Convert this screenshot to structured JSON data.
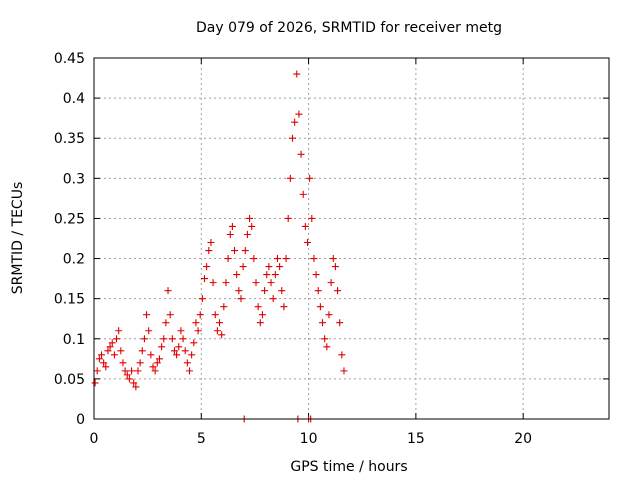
{
  "chart_data": {
    "type": "scatter",
    "title": "Day 079 of 2026, SRMTID for receiver metg",
    "xlabel": "GPS time / hours",
    "ylabel": "SRMTID / TECUs",
    "xlim": [
      0,
      24
    ],
    "ylim": [
      0,
      0.45
    ],
    "xticks": [
      0,
      5,
      10,
      15,
      20
    ],
    "xtick_labels": [
      "0",
      "5",
      "10",
      "15",
      "20"
    ],
    "yticks": [
      0,
      0.05,
      0.1,
      0.15,
      0.2,
      0.25,
      0.3,
      0.35,
      0.4,
      0.45
    ],
    "ytick_labels": [
      "0",
      "0.05",
      "0.1",
      "0.15",
      "0.2",
      "0.25",
      "0.3",
      "0.35",
      "0.4",
      "0.45"
    ],
    "grid": true,
    "marker": "plus",
    "color": "#e00000",
    "series": [
      {
        "name": "SRMTID",
        "x": [
          0.05,
          0.15,
          0.25,
          0.35,
          0.45,
          0.55,
          0.65,
          0.75,
          0.85,
          0.95,
          1.05,
          1.15,
          1.25,
          1.35,
          1.45,
          1.55,
          1.65,
          1.75,
          1.85,
          1.95,
          2.05,
          2.15,
          2.25,
          2.35,
          2.45,
          2.55,
          2.65,
          2.75,
          2.85,
          2.95,
          3.05,
          3.15,
          3.25,
          3.35,
          3.45,
          3.55,
          3.65,
          3.75,
          3.85,
          3.95,
          4.05,
          4.15,
          4.25,
          4.35,
          4.45,
          4.55,
          4.65,
          4.75,
          4.85,
          4.95,
          5.05,
          5.15,
          5.25,
          5.35,
          5.45,
          5.55,
          5.65,
          5.75,
          5.85,
          5.95,
          6.05,
          6.15,
          6.25,
          6.35,
          6.45,
          6.55,
          6.65,
          6.75,
          6.85,
          6.95,
          7.05,
          7.15,
          7.25,
          7.35,
          7.45,
          7.55,
          7.65,
          7.75,
          7.85,
          7.95,
          8.05,
          8.15,
          8.25,
          8.35,
          8.45,
          8.55,
          8.65,
          8.75,
          8.85,
          8.95,
          9.05,
          9.15,
          9.25,
          9.35,
          9.45,
          9.55,
          9.65,
          9.75,
          9.85,
          9.95,
          10.05,
          10.15,
          10.25,
          10.35,
          10.45,
          10.55,
          10.65,
          10.75,
          10.85,
          10.95,
          11.05,
          11.15,
          11.25,
          11.35,
          11.45,
          11.55,
          11.65,
          7.0,
          9.5,
          10.0,
          10.1
        ],
        "y": [
          0.045,
          0.06,
          0.075,
          0.08,
          0.07,
          0.065,
          0.085,
          0.09,
          0.095,
          0.08,
          0.1,
          0.11,
          0.085,
          0.07,
          0.06,
          0.055,
          0.05,
          0.06,
          0.045,
          0.04,
          0.06,
          0.07,
          0.085,
          0.1,
          0.13,
          0.11,
          0.08,
          0.065,
          0.06,
          0.07,
          0.075,
          0.09,
          0.1,
          0.12,
          0.16,
          0.13,
          0.1,
          0.085,
          0.08,
          0.09,
          0.11,
          0.1,
          0.085,
          0.07,
          0.06,
          0.08,
          0.095,
          0.12,
          0.11,
          0.13,
          0.15,
          0.175,
          0.19,
          0.21,
          0.22,
          0.17,
          0.13,
          0.11,
          0.12,
          0.105,
          0.14,
          0.17,
          0.2,
          0.23,
          0.24,
          0.21,
          0.18,
          0.16,
          0.15,
          0.19,
          0.21,
          0.23,
          0.25,
          0.24,
          0.2,
          0.17,
          0.14,
          0.12,
          0.13,
          0.16,
          0.18,
          0.19,
          0.17,
          0.15,
          0.18,
          0.2,
          0.19,
          0.16,
          0.14,
          0.2,
          0.25,
          0.3,
          0.35,
          0.37,
          0.43,
          0.38,
          0.33,
          0.28,
          0.24,
          0.22,
          0.3,
          0.25,
          0.2,
          0.18,
          0.16,
          0.14,
          0.12,
          0.1,
          0.09,
          0.13,
          0.17,
          0.2,
          0.19,
          0.16,
          0.12,
          0.08,
          0.06,
          0.0,
          0.0,
          0.0,
          0.0
        ]
      }
    ]
  }
}
